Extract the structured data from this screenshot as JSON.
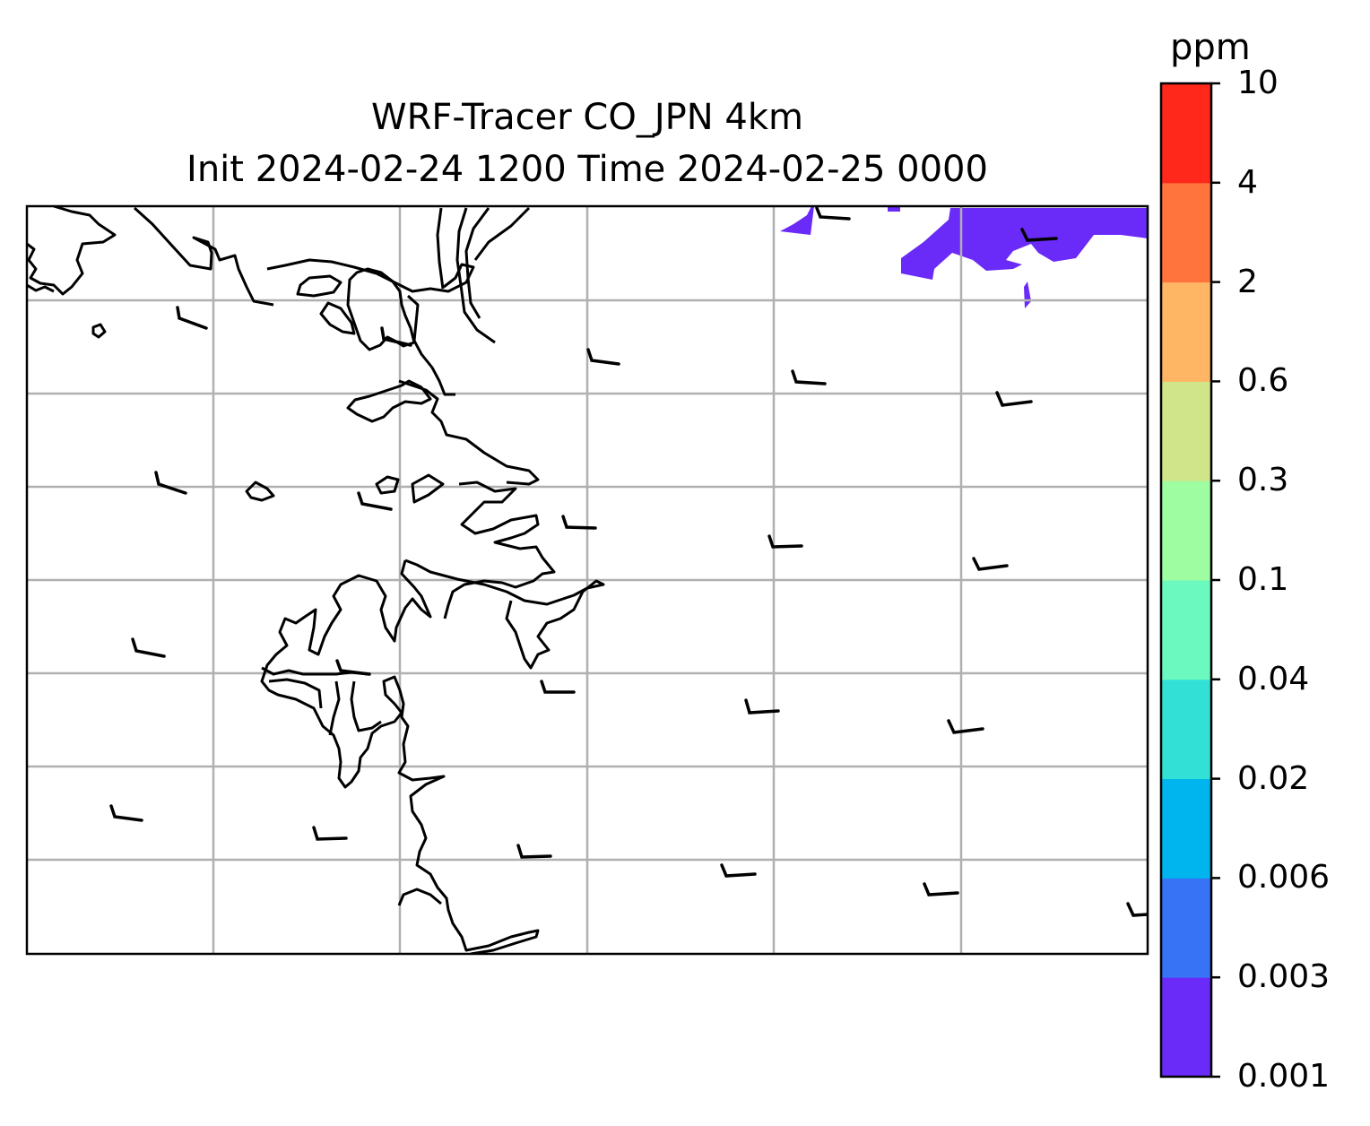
{
  "title": {
    "line1": "WRF-Tracer CO_JPN 4km",
    "line2": "Init 2024-02-24 1200 Time 2024-02-25 0000"
  },
  "colorbar": {
    "unit": "ppm",
    "levels": [
      "0.001",
      "0.003",
      "0.006",
      "0.02",
      "0.04",
      "0.1",
      "0.3",
      "0.6",
      "2",
      "4",
      "10"
    ],
    "colors": [
      "#6a2af7",
      "#3673f5",
      "#00b4ee",
      "#33e0d6",
      "#6cf9c0",
      "#9dfda0",
      "#d0e589",
      "#ffb664",
      "#ff733c",
      "#ff281a"
    ]
  },
  "map": {
    "grid": "on",
    "features": [
      "coastlines",
      "gridlines",
      "wind-barbs",
      "tracer-fill"
    ]
  }
}
